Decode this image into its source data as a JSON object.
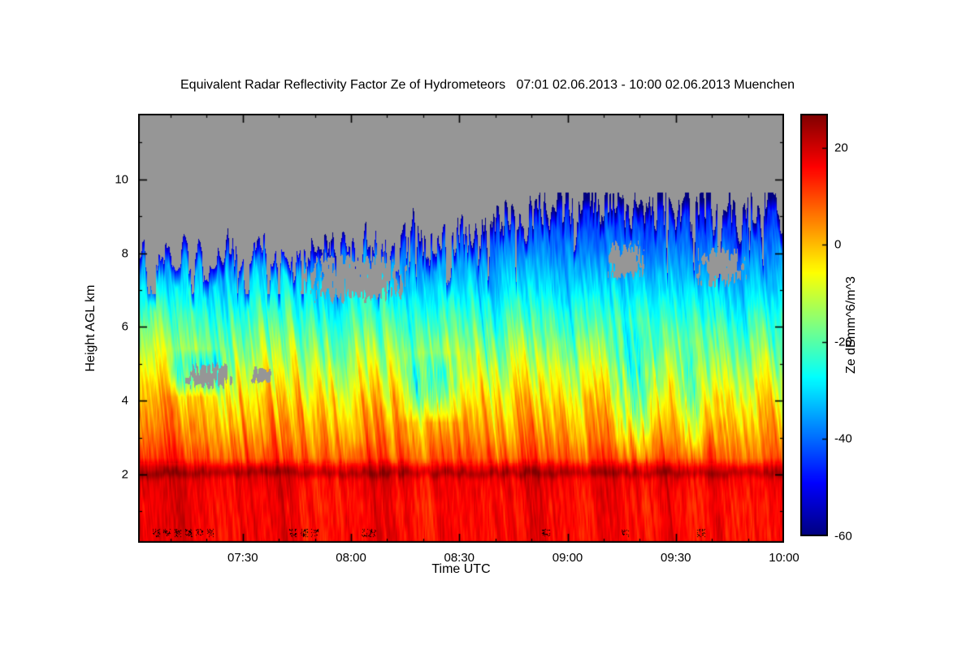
{
  "page": {
    "background": "#ffffff"
  },
  "chart_data": {
    "type": "heatmap",
    "title": "Equivalent Radar Reflectivity Factor Ze of Hydrometeors   07:01 02.06.2013 - 10:00 02.06.2013 Muenchen",
    "site": "Muenchen",
    "time_span": {
      "start": "07:01 02.06.2013",
      "end": "10:00 02.06.2013"
    },
    "x": {
      "label": "Time UTC",
      "ticks": [
        "07:30",
        "08:00",
        "08:30",
        "09:00",
        "09:30",
        "10:00"
      ],
      "tick_minutes": [
        450,
        480,
        510,
        540,
        570,
        600
      ],
      "range_minutes": [
        421,
        600
      ],
      "minor_tick_step_minutes": 10
    },
    "y": {
      "label": "Height AGL km",
      "ticks": [
        2,
        4,
        6,
        8,
        10
      ],
      "range_km": [
        0.15,
        11.78
      ]
    },
    "z": {
      "label": "Ze dBmm^6/m^3",
      "ticks": [
        20,
        0,
        -20,
        -40,
        -60
      ],
      "range": [
        -60,
        27
      ],
      "colormap": "jet",
      "nodata_color": "#969696"
    },
    "field_model": {
      "profile": {
        "heights_km": [
          0.15,
          1.2,
          1.9,
          2.2,
          2.45,
          3,
          4,
          5,
          6,
          7,
          8,
          9,
          9.7,
          11.8
        ],
        "ze_dbz": [
          16,
          15.5,
          17,
          17,
          9,
          4,
          -3,
          -12,
          -21,
          -30,
          -38,
          -45,
          -50,
          -52
        ]
      },
      "bright_band_km": 2.05,
      "cloud_top_km": {
        "early": 8.0,
        "late": 9.3,
        "min": 6.9,
        "max": 9.65
      },
      "gray_patches": [
        {
          "t0": 433,
          "t1": 449,
          "h0": 4.3,
          "h1": 5.05,
          "seed": 11
        },
        {
          "t0": 452,
          "t1": 459,
          "h0": 4.45,
          "h1": 4.95,
          "seed": 23
        },
        {
          "t0": 465,
          "t1": 497,
          "h0": 6.6,
          "h1": 8.05,
          "seed": 37
        },
        {
          "t0": 550,
          "t1": 562,
          "h0": 7.2,
          "h1": 8.4,
          "seed": 51
        },
        {
          "t0": 575,
          "t1": 590,
          "h0": 7.0,
          "h1": 8.2,
          "seed": 67
        }
      ],
      "cold_patches": [
        {
          "t0": 428,
          "t1": 447,
          "h0": 4.1,
          "h1": 5.4,
          "amp": 17,
          "seed": 5
        },
        {
          "t0": 493,
          "t1": 513,
          "h0": 3.4,
          "h1": 5.3,
          "amp": 15,
          "seed": 9
        },
        {
          "t0": 551,
          "t1": 567,
          "h0": 2.3,
          "h1": 6.2,
          "amp": 14,
          "seed": 13
        },
        {
          "t0": 569,
          "t1": 580,
          "h0": 2.4,
          "h1": 5.6,
          "amp": 12,
          "seed": 19
        }
      ],
      "clutter_minutes": [
        426,
        429,
        432,
        435,
        438,
        441,
        464,
        467,
        470,
        484,
        486,
        534,
        556,
        577
      ]
    }
  }
}
